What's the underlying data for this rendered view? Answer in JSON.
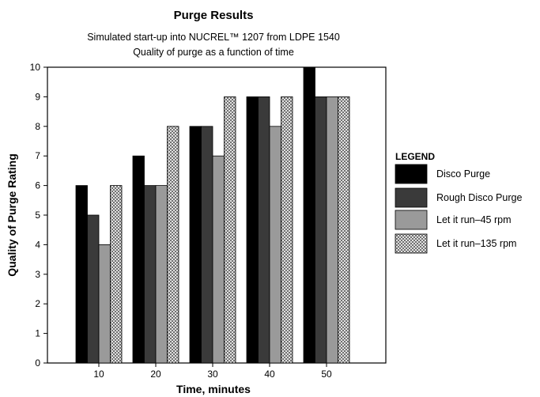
{
  "chart_data": {
    "type": "bar",
    "title": "Purge Results",
    "subtitle": [
      "Simulated start-up into NUCREL™ 1207 from LDPE 1540",
      "Quality of purge as a function of time"
    ],
    "xlabel": "Time, minutes",
    "ylabel": "Quality of Purge Rating",
    "categories": [
      "10",
      "20",
      "30",
      "40",
      "50"
    ],
    "ylim": [
      0,
      10
    ],
    "yticks": [
      0,
      1,
      2,
      3,
      4,
      5,
      6,
      7,
      8,
      9,
      10
    ],
    "grid": false,
    "legend": {
      "title": "LEGEND",
      "placement": "right"
    },
    "series": [
      {
        "name": "Disco Purge",
        "values": [
          6,
          7,
          8,
          9,
          10
        ],
        "color": "#000000",
        "pattern": "solid"
      },
      {
        "name": "Rough Disco Purge",
        "values": [
          5,
          6,
          8,
          9,
          9
        ],
        "color": "#3a3a3a",
        "pattern": "solid"
      },
      {
        "name": "Let it run–45 rpm",
        "values": [
          4,
          6,
          7,
          8,
          9
        ],
        "color": "#9a9a9a",
        "pattern": "solid"
      },
      {
        "name": "Let it run–135 rpm",
        "values": [
          6,
          8,
          9,
          9,
          9
        ],
        "color": "#ffffff",
        "pattern": "crosshatch"
      }
    ]
  }
}
